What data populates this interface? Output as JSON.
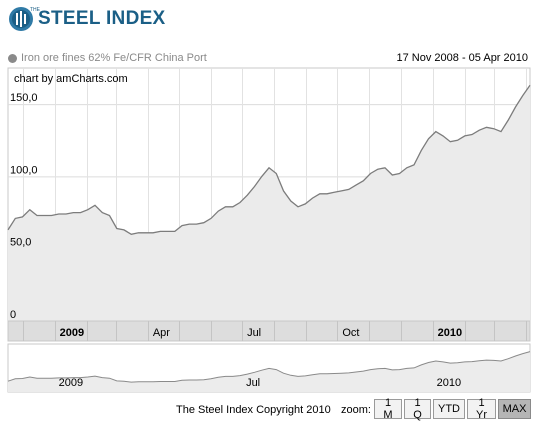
{
  "header": {
    "brand_small": "THE",
    "brand": "STEEL INDEX"
  },
  "legend": {
    "series_label": "Iron ore fines 62% Fe/CFR China Port",
    "date_range": "17 Nov 2008 - 05 Apr 2010"
  },
  "credit": "chart by amCharts.com",
  "footer": {
    "copyright": "The Steel Index Copyright 2010",
    "zoom_label": "zoom:",
    "zoom_buttons": [
      "1 M",
      "1 Q",
      "YTD",
      "1 Yr",
      "MAX"
    ],
    "active_zoom": "MAX"
  },
  "colors": {
    "line": "#7c7c7c",
    "fill": "#ebebeb",
    "brand": "#1b5f86"
  },
  "chart_data": {
    "type": "area",
    "series": [
      {
        "name": "Iron ore fines 62% Fe/CFR China Port",
        "x": [
          "2008-11-17",
          "2008-11-24",
          "2008-12-01",
          "2008-12-08",
          "2008-12-15",
          "2008-12-22",
          "2008-12-29",
          "2009-01-05",
          "2009-01-12",
          "2009-01-19",
          "2009-01-26",
          "2009-02-02",
          "2009-02-09",
          "2009-02-16",
          "2009-02-23",
          "2009-03-02",
          "2009-03-09",
          "2009-03-16",
          "2009-03-23",
          "2009-03-30",
          "2009-04-06",
          "2009-04-13",
          "2009-04-20",
          "2009-04-27",
          "2009-05-04",
          "2009-05-11",
          "2009-05-18",
          "2009-05-25",
          "2009-06-01",
          "2009-06-08",
          "2009-06-15",
          "2009-06-22",
          "2009-06-29",
          "2009-07-06",
          "2009-07-13",
          "2009-07-20",
          "2009-07-27",
          "2009-08-03",
          "2009-08-10",
          "2009-08-17",
          "2009-08-24",
          "2009-08-31",
          "2009-09-07",
          "2009-09-14",
          "2009-09-21",
          "2009-09-28",
          "2009-10-05",
          "2009-10-12",
          "2009-10-19",
          "2009-10-26",
          "2009-11-02",
          "2009-11-09",
          "2009-11-16",
          "2009-11-23",
          "2009-11-30",
          "2009-12-07",
          "2009-12-14",
          "2009-12-21",
          "2009-12-28",
          "2010-01-04",
          "2010-01-11",
          "2010-01-18",
          "2010-01-25",
          "2010-02-01",
          "2010-02-08",
          "2010-02-15",
          "2010-02-22",
          "2010-03-01",
          "2010-03-08",
          "2010-03-15",
          "2010-03-22",
          "2010-03-29",
          "2010-04-05"
        ],
        "y": [
          63,
          71,
          72,
          77,
          73,
          73,
          73,
          74,
          74,
          75,
          75,
          77,
          80,
          75,
          73,
          64,
          63,
          60,
          61,
          61,
          61,
          62,
          62,
          62,
          66,
          67,
          67,
          68,
          71,
          76,
          79,
          79,
          82,
          87,
          93,
          100,
          106,
          102,
          90,
          83,
          79,
          81,
          85,
          88,
          88,
          89,
          90,
          91,
          94,
          97,
          102,
          105,
          106,
          101,
          102,
          106,
          108,
          118,
          126,
          131,
          128,
          124,
          125,
          128,
          129,
          132,
          134,
          133,
          131,
          139,
          148,
          156,
          163
        ]
      }
    ],
    "ylim": [
      0,
      175
    ],
    "yticks": [
      "0",
      "50,0",
      "100,0",
      "150,0"
    ],
    "ytick_values": [
      0,
      50,
      100,
      150
    ],
    "xticks": [
      {
        "label": "2009",
        "date": "2009-01-01",
        "bold": true
      },
      {
        "label": "Apr",
        "date": "2009-04-01",
        "bold": false
      },
      {
        "label": "Jul",
        "date": "2009-07-01",
        "bold": false
      },
      {
        "label": "Oct",
        "date": "2009-10-01",
        "bold": false
      },
      {
        "label": "2010",
        "date": "2010-01-01",
        "bold": true
      }
    ],
    "navigator_labels": [
      {
        "label": "2009",
        "date": "2009-01-01"
      },
      {
        "label": "Jul",
        "date": "2009-07-01"
      },
      {
        "label": "2010",
        "date": "2010-01-01"
      }
    ],
    "grid": true
  }
}
